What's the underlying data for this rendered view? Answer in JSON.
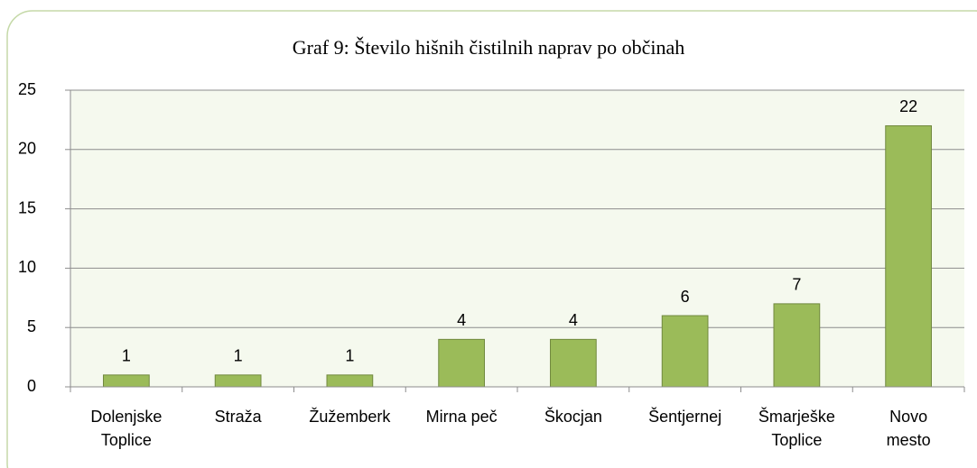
{
  "chart_data": {
    "type": "bar",
    "title": "Graf  9: Število hišnih čistilnih naprav po občinah",
    "categories": [
      "Dolenjske Toplice",
      "Straža",
      "Žužemberk",
      "Mirna peč",
      "Škocjan",
      "Šentjernej",
      "Šmarješke Toplice",
      "Novo mesto"
    ],
    "values": [
      1,
      1,
      1,
      4,
      4,
      6,
      7,
      22
    ],
    "color": "#9bbb59",
    "ylim": [
      0,
      25
    ],
    "yticks": [
      0,
      5,
      10,
      15,
      20,
      25
    ],
    "grid": true
  }
}
